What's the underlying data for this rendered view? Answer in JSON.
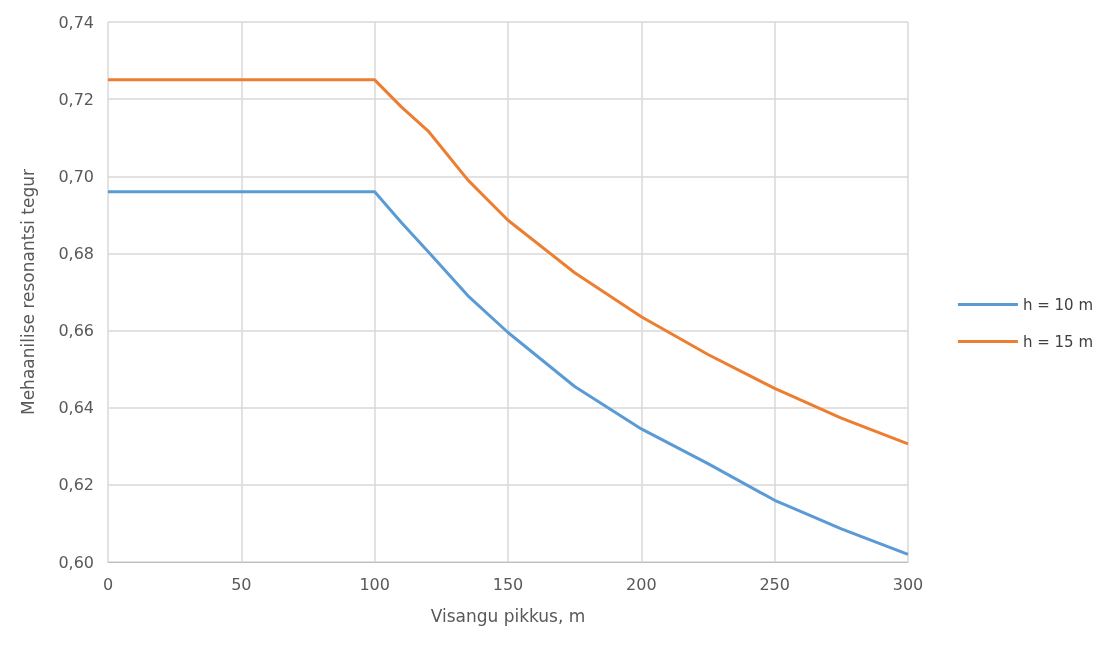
{
  "chart_data": {
    "type": "line",
    "xlabel": "Visangu pikkus, m",
    "ylabel": "Mehaanilise resonantsi tegur",
    "x": [
      0,
      100,
      110,
      120,
      135,
      150,
      175,
      200,
      225,
      250,
      275,
      300
    ],
    "series": [
      {
        "name": "h = 10 m",
        "color": "#5b9bd5",
        "values": [
          0.696,
          0.696,
          0.688,
          0.6805,
          0.669,
          0.6595,
          0.6455,
          0.6345,
          0.6255,
          0.616,
          0.6086,
          0.602
        ]
      },
      {
        "name": "h = 15 m",
        "color": "#ed7d31",
        "values": [
          0.725,
          0.725,
          0.718,
          0.7118,
          0.699,
          0.6886,
          0.675,
          0.6636,
          0.6538,
          0.645,
          0.6373,
          0.6306
        ]
      }
    ],
    "xlim": [
      0,
      300
    ],
    "xticks": [
      0,
      50,
      100,
      150,
      200,
      250,
      300
    ],
    "ylim": [
      0.6,
      0.74
    ],
    "yticks": [
      {
        "value": 0.6,
        "label": "0,60"
      },
      {
        "value": 0.62,
        "label": "0,62"
      },
      {
        "value": 0.64,
        "label": "0,64"
      },
      {
        "value": 0.66,
        "label": "0,66"
      },
      {
        "value": 0.68,
        "label": "0,68"
      },
      {
        "value": 0.7,
        "label": "0,70"
      },
      {
        "value": 0.72,
        "label": "0,72"
      },
      {
        "value": 0.74,
        "label": "0,74"
      }
    ],
    "grid": true,
    "legend": "right",
    "marker": "none",
    "line_style": "solid"
  }
}
